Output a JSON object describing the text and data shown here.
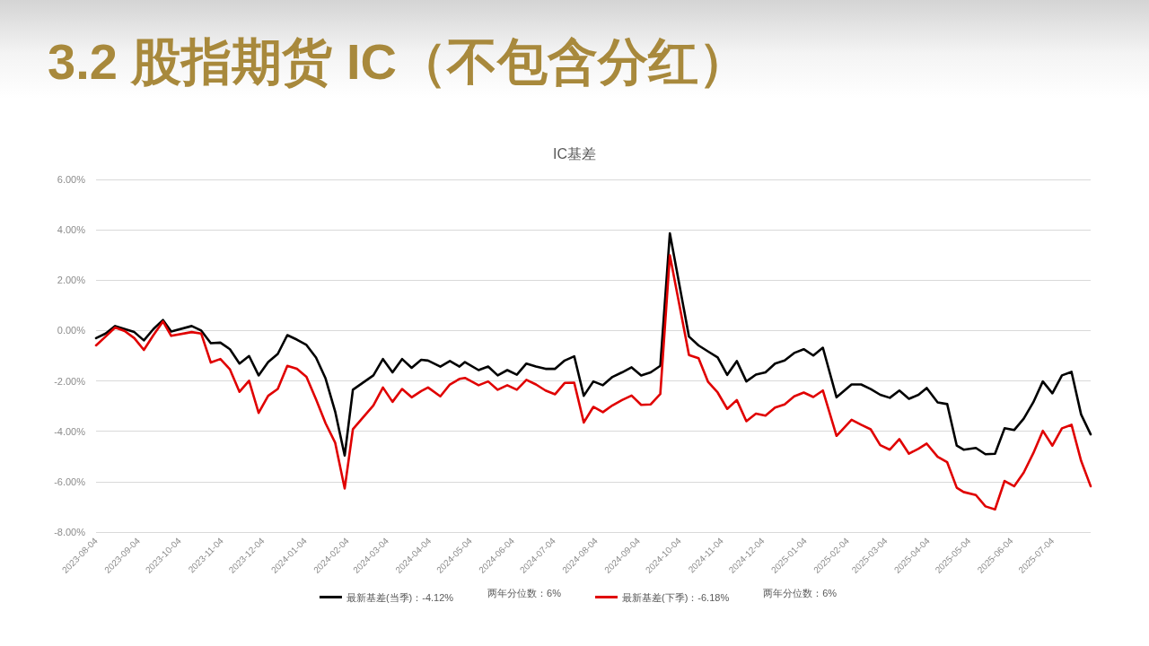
{
  "chart_data": {
    "type": "line",
    "title": "3.2 股指期货 IC（不包含分红）",
    "subtitle": "IC基差",
    "x": [
      "2023-08-04",
      "2023-08-11",
      "2023-08-18",
      "2023-08-25",
      "2023-09-01",
      "2023-09-08",
      "2023-09-15",
      "2023-09-22",
      "2023-09-28",
      "2023-10-13",
      "2023-10-20",
      "2023-10-27",
      "2023-11-03",
      "2023-11-10",
      "2023-11-17",
      "2023-11-24",
      "2023-12-01",
      "2023-12-08",
      "2023-12-15",
      "2023-12-22",
      "2023-12-29",
      "2024-01-05",
      "2024-01-12",
      "2024-01-19",
      "2024-01-26",
      "2024-02-02",
      "2024-02-08",
      "2024-02-23",
      "2024-03-01",
      "2024-03-08",
      "2024-03-15",
      "2024-03-22",
      "2024-03-29",
      "2024-04-03",
      "2024-04-12",
      "2024-04-19",
      "2024-04-26",
      "2024-04-30",
      "2024-05-10",
      "2024-05-17",
      "2024-05-24",
      "2024-05-31",
      "2024-06-07",
      "2024-06-14",
      "2024-06-21",
      "2024-06-28",
      "2024-07-05",
      "2024-07-12",
      "2024-07-19",
      "2024-07-26",
      "2024-08-02",
      "2024-08-09",
      "2024-08-16",
      "2024-08-23",
      "2024-08-30",
      "2024-09-06",
      "2024-09-13",
      "2024-09-20",
      "2024-09-27",
      "2024-10-11",
      "2024-10-18",
      "2024-10-25",
      "2024-11-01",
      "2024-11-08",
      "2024-11-15",
      "2024-11-22",
      "2024-11-29",
      "2024-12-06",
      "2024-12-13",
      "2024-12-20",
      "2024-12-27",
      "2025-01-03",
      "2025-01-10",
      "2025-01-17",
      "2025-01-27",
      "2025-02-07",
      "2025-02-14",
      "2025-02-21",
      "2025-02-28",
      "2025-03-07",
      "2025-03-14",
      "2025-03-21",
      "2025-03-28",
      "2025-04-03",
      "2025-04-11",
      "2025-04-18",
      "2025-04-25",
      "2025-04-30",
      "2025-05-09",
      "2025-05-16",
      "2025-05-23",
      "2025-05-30",
      "2025-06-06",
      "2025-06-13",
      "2025-06-20",
      "2025-06-27",
      "2025-07-04",
      "2025-07-11",
      "2025-07-18",
      "2025-07-25",
      "2025-08-01"
    ],
    "xlim": [
      "2023-08-04",
      "2025-08-01"
    ],
    "xticks": [
      "2023-08-04",
      "2023-09-04",
      "2023-10-04",
      "2023-11-04",
      "2023-12-04",
      "2024-01-04",
      "2024-02-04",
      "2024-03-04",
      "2024-04-04",
      "2024-05-04",
      "2024-06-04",
      "2024-07-04",
      "2024-08-04",
      "2024-09-04",
      "2024-10-04",
      "2024-11-04",
      "2024-12-04",
      "2025-01-04",
      "2025-02-04",
      "2025-03-04",
      "2025-04-04",
      "2025-05-04",
      "2025-06-04",
      "2025-07-04"
    ],
    "ylim": [
      -8,
      6
    ],
    "yticks": [
      {
        "value": -8,
        "label": "-8.00%"
      },
      {
        "value": -6,
        "label": "-6.00%"
      },
      {
        "value": -4,
        "label": "-4.00%"
      },
      {
        "value": -2,
        "label": "-2.00%"
      },
      {
        "value": 0,
        "label": "0.00%"
      },
      {
        "value": 2,
        "label": "2.00%"
      },
      {
        "value": 4,
        "label": "4.00%"
      },
      {
        "value": 6,
        "label": "6.00%"
      }
    ],
    "series": [
      {
        "name": "最新基差(当季)：-4.12%",
        "color": "#000000",
        "values": [
          -0.3,
          -0.12,
          0.18,
          0.06,
          -0.06,
          -0.39,
          0.06,
          0.42,
          -0.04,
          0.18,
          0.0,
          -0.5,
          -0.48,
          -0.74,
          -1.31,
          -1.01,
          -1.78,
          -1.25,
          -0.93,
          -0.18,
          -0.36,
          -0.57,
          -1.07,
          -1.9,
          -3.21,
          -4.96,
          -2.35,
          -1.78,
          -1.13,
          -1.66,
          -1.13,
          -1.48,
          -1.16,
          -1.19,
          -1.43,
          -1.21,
          -1.43,
          -1.25,
          -1.57,
          -1.43,
          -1.78,
          -1.57,
          -1.75,
          -1.31,
          -1.43,
          -1.52,
          -1.52,
          -1.19,
          -1.02,
          -2.59,
          -2.02,
          -2.17,
          -1.84,
          -1.66,
          -1.46,
          -1.78,
          -1.66,
          -1.4,
          3.86,
          -0.24,
          -0.59,
          -0.83,
          -1.07,
          -1.76,
          -1.21,
          -2.02,
          -1.75,
          -1.66,
          -1.31,
          -1.19,
          -0.89,
          -0.74,
          -0.99,
          -0.68,
          -2.65,
          -2.14,
          -2.14,
          -2.32,
          -2.55,
          -2.67,
          -2.38,
          -2.71,
          -2.55,
          -2.28,
          -2.85,
          -2.92,
          -4.57,
          -4.73,
          -4.66,
          -4.91,
          -4.89,
          -3.88,
          -3.95,
          -3.5,
          -2.85,
          -2.02,
          -2.49,
          -1.78,
          -1.64,
          -3.33,
          -4.12
        ]
      },
      {
        "name": "最新基差(下季)：-6.18%",
        "color": "#e00000",
        "values": [
          -0.59,
          -0.24,
          0.12,
          -0.02,
          -0.3,
          -0.77,
          -0.18,
          0.36,
          -0.21,
          -0.06,
          -0.12,
          -1.27,
          -1.13,
          -1.54,
          -2.43,
          -1.99,
          -3.27,
          -2.59,
          -2.32,
          -1.4,
          -1.52,
          -1.84,
          -2.73,
          -3.68,
          -4.45,
          -6.27,
          -3.92,
          -2.97,
          -2.26,
          -2.83,
          -2.32,
          -2.65,
          -2.4,
          -2.26,
          -2.61,
          -2.14,
          -1.92,
          -1.88,
          -2.17,
          -2.02,
          -2.35,
          -2.17,
          -2.35,
          -1.96,
          -2.14,
          -2.38,
          -2.53,
          -2.08,
          -2.07,
          -3.65,
          -3.03,
          -3.24,
          -2.97,
          -2.76,
          -2.58,
          -2.95,
          -2.93,
          -2.52,
          2.99,
          -0.97,
          -1.1,
          -2.04,
          -2.46,
          -3.11,
          -2.76,
          -3.6,
          -3.3,
          -3.38,
          -3.06,
          -2.93,
          -2.61,
          -2.46,
          -2.64,
          -2.38,
          -4.18,
          -3.54,
          -3.74,
          -3.92,
          -4.55,
          -4.73,
          -4.31,
          -4.89,
          -4.69,
          -4.49,
          -5.01,
          -5.23,
          -6.24,
          -6.41,
          -6.53,
          -6.98,
          -7.1,
          -5.97,
          -6.18,
          -5.64,
          -4.87,
          -3.98,
          -4.57,
          -3.88,
          -3.74,
          -5.17,
          -6.18
        ]
      }
    ],
    "annotations": [
      "两年分位数：6%",
      "两年分位数：6%"
    ],
    "grid": "y",
    "legend": "bottom"
  }
}
